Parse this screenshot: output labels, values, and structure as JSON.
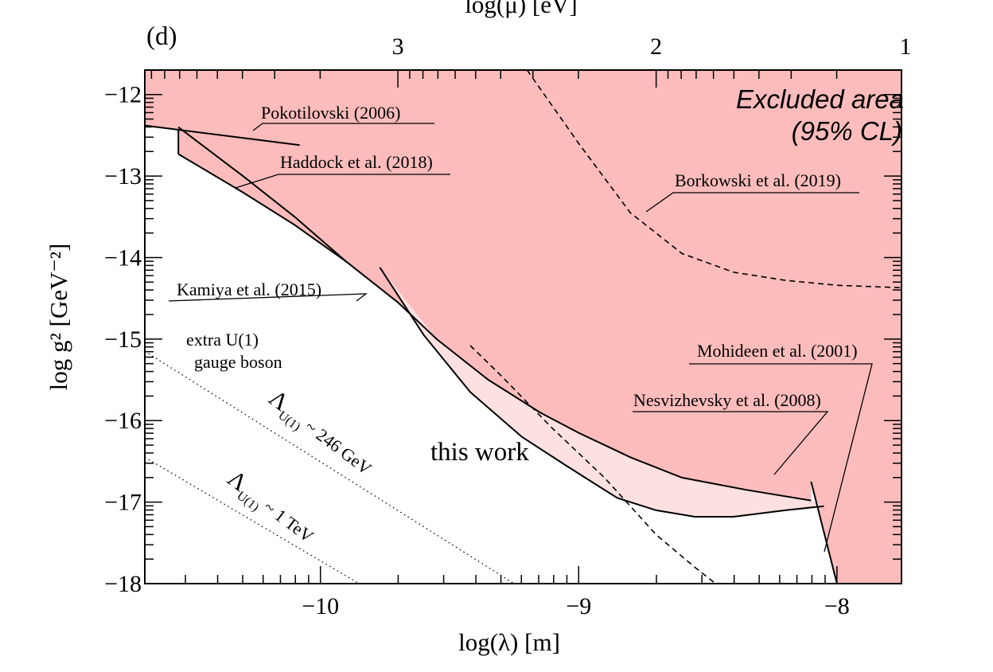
{
  "panel_label": "(d)",
  "colors": {
    "excluded": "#fcbcbc",
    "this_work": "#fde0e0",
    "line": "#000000"
  },
  "chart_data": {
    "type": "line",
    "xlabel": "log(λ) [m]",
    "ylabel": "log g² [GeV⁻²]",
    "top_xlabel": "log(μ) [eV]",
    "xlim": [
      -10.68,
      -7.75
    ],
    "ylim": [
      -18,
      -11.7
    ],
    "x_ticks": [
      {
        "value": -10,
        "label": "−10"
      },
      {
        "value": -9,
        "label": "−9"
      },
      {
        "value": -8,
        "label": "−8"
      }
    ],
    "y_ticks": [
      {
        "value": -12,
        "label": "−12"
      },
      {
        "value": -13,
        "label": "−13"
      },
      {
        "value": -14,
        "label": "−14"
      },
      {
        "value": -15,
        "label": "−15"
      },
      {
        "value": -16,
        "label": "−16"
      },
      {
        "value": -17,
        "label": "−17"
      },
      {
        "value": -18,
        "label": "−18"
      }
    ],
    "top_ticks": [
      {
        "x": -9.7,
        "label": "3"
      },
      {
        "x": -8.7,
        "label": "2"
      },
      {
        "x": -7.7,
        "label": "1"
      }
    ],
    "annotations": {
      "excluded_line1": "Excluded area",
      "excluded_line2": "(95% CL)",
      "this_work": "this work",
      "extra_u1_line1": "extra U(1)",
      "extra_u1_line2": "gauge boson",
      "lambda_246_main": "Λ",
      "lambda_246_sub": "U(1)",
      "lambda_246_rest": " ~ 246 GeV",
      "lambda_1tev_main": "Λ",
      "lambda_1tev_sub": "U(1)",
      "lambda_1tev_rest": " ~ 1 TeV"
    },
    "series": [
      {
        "name": "Pokotilovski (2006)",
        "style": "solid",
        "x": [
          -10.68,
          -10.08
        ],
        "y": [
          -12.38,
          -12.62
        ]
      },
      {
        "name": "Haddock et al. (2018)",
        "style": "solid",
        "x": [
          -10.55,
          -10.3,
          -10.1,
          -9.9
        ],
        "y": [
          -12.4,
          -13.0,
          -13.5,
          -14.05
        ]
      },
      {
        "name": "Kamiya et al. (2015)",
        "style": "solid",
        "x": [
          -10.55,
          -10.3,
          -10.1,
          -9.9,
          -9.7,
          -9.55,
          -9.35,
          -9.15,
          -9.0,
          -8.8,
          -8.6,
          -8.35,
          -8.1
        ],
        "y": [
          -12.73,
          -13.2,
          -13.6,
          -14.05,
          -14.55,
          -15.0,
          -15.5,
          -15.9,
          -16.15,
          -16.45,
          -16.7,
          -16.85,
          -16.98
        ]
      },
      {
        "name": "Nesvizhevsky et al. (2008)",
        "style": "solid",
        "x": [
          -9.77,
          -9.6,
          -9.42,
          -9.22,
          -9.05,
          -8.95,
          -8.85,
          -8.7,
          -8.55,
          -8.4,
          -8.2,
          -8.05
        ],
        "y": [
          -14.12,
          -14.95,
          -15.65,
          -16.2,
          -16.55,
          -16.75,
          -16.95,
          -17.1,
          -17.18,
          -17.18,
          -17.1,
          -17.05
        ]
      },
      {
        "name": "Mohideen et al. (2001)",
        "style": "solid",
        "x": [
          -8.1,
          -8.0
        ],
        "y": [
          -16.75,
          -18.0
        ]
      },
      {
        "name": "Borkowski et al. (2019)",
        "style": "dashed",
        "x": [
          -9.2,
          -9.0,
          -8.8,
          -8.6,
          -8.4,
          -8.2,
          -8.0,
          -7.75
        ],
        "y": [
          -11.7,
          -12.6,
          -13.45,
          -13.95,
          -14.18,
          -14.28,
          -14.34,
          -14.37
        ]
      },
      {
        "name": "Borkowski et al. (2019) lower",
        "style": "dashed",
        "x": [
          -9.42,
          -9.3,
          -9.1,
          -8.9,
          -8.7,
          -8.55,
          -8.47
        ],
        "y": [
          -15.08,
          -15.45,
          -16.1,
          -16.7,
          -17.4,
          -17.8,
          -18.0
        ]
      }
    ],
    "u1_lines": [
      {
        "style": "dotted",
        "x": [
          -10.68,
          -9.25
        ],
        "y": [
          -15.15,
          -18.0
        ]
      },
      {
        "style": "dotted",
        "x": [
          -10.68,
          -9.85
        ],
        "y": [
          -16.45,
          -18.0
        ]
      }
    ]
  }
}
